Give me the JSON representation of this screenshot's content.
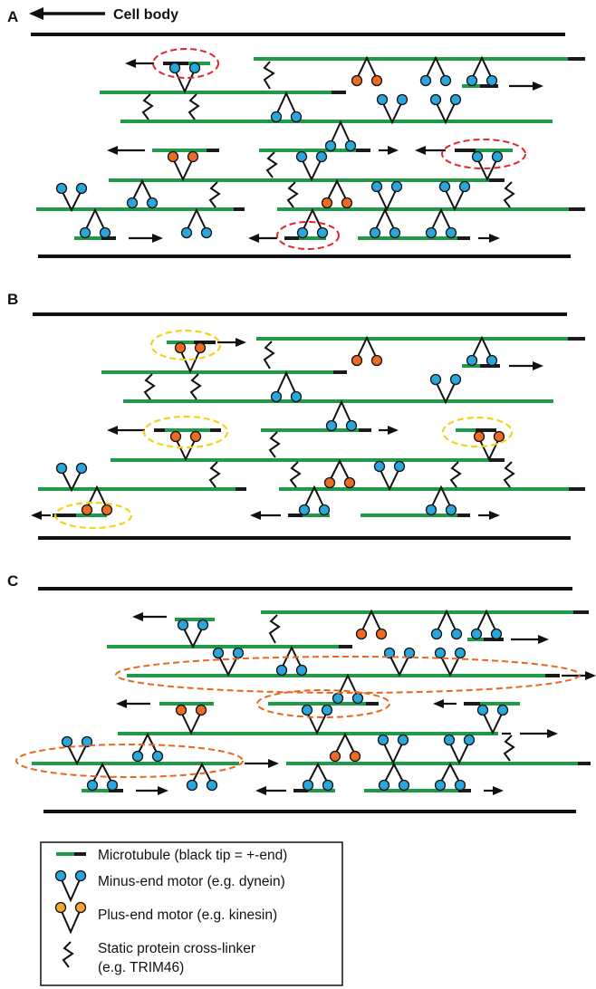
{
  "figure": {
    "panels": [
      {
        "letter": "A",
        "cell_body": "Cell body"
      },
      {
        "letter": "B"
      },
      {
        "letter": "C"
      }
    ],
    "legend": {
      "items": [
        {
          "key": "microtubule",
          "text": "Microtubule (black tip = +-end)"
        },
        {
          "key": "minus_motor",
          "text": "Minus-end motor (e.g. dynein)"
        },
        {
          "key": "plus_motor",
          "text": "Plus-end motor (e.g. kinesin)"
        },
        {
          "key": "crosslinker",
          "text": "Static protein cross-linker",
          "text2": "(e.g. TRIM46)"
        }
      ]
    },
    "colors": {
      "microtubule": "#1f9a49",
      "plus_end_tip": "#1a1a1a",
      "minus_motor": "#2aa6dc",
      "plus_motor": "#ee6b24",
      "legend_plus_motor": "#f4a634",
      "highlight_A": "#e0262b",
      "highlight_B": "#f2d31c",
      "highlight_C": "#e8671f"
    }
  }
}
